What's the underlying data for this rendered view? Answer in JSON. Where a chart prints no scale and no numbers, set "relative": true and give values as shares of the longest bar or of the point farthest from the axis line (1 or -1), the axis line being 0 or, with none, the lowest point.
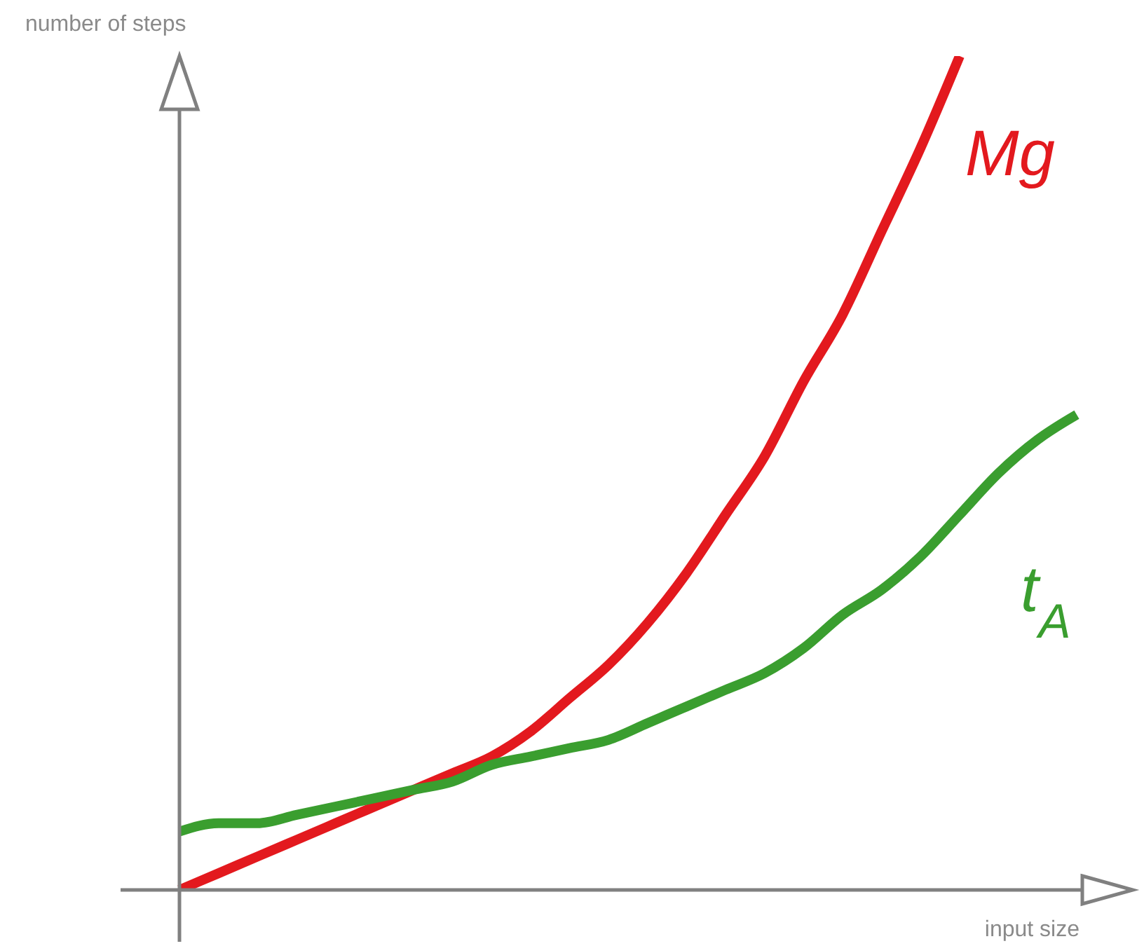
{
  "chart_data": {
    "type": "line",
    "relative": true,
    "xlabel": "input size",
    "ylabel": "number of steps",
    "categories": [
      null,
      null,
      null,
      null,
      null,
      null,
      null,
      null,
      null,
      null,
      null,
      null,
      null,
      null,
      null,
      null,
      null,
      null,
      null,
      null,
      null,
      null,
      null,
      null
    ],
    "series": [
      {
        "name": "Mg",
        "color": "#e3191e",
        "values": [
          0,
          0.02,
          0.04,
          0.06,
          0.08,
          0.1,
          0.12,
          0.14,
          0.16,
          0.19,
          0.23,
          0.27,
          0.32,
          0.38,
          0.45,
          0.52,
          0.61,
          0.69,
          0.79,
          0.89,
          1,
          null,
          null,
          null
        ]
      },
      {
        "name": "t$_{A}$",
        "color": "#3a9e2f",
        "values": [
          0.07,
          0.08,
          0.08,
          0.09,
          0.1,
          0.11,
          0.12,
          0.13,
          0.15,
          0.16,
          0.17,
          0.18,
          0.2,
          0.22,
          0.24,
          0.26,
          0.29,
          0.33,
          0.36,
          0.4,
          0.45,
          0.5,
          0.54,
          0.57
        ]
      }
    ]
  }
}
